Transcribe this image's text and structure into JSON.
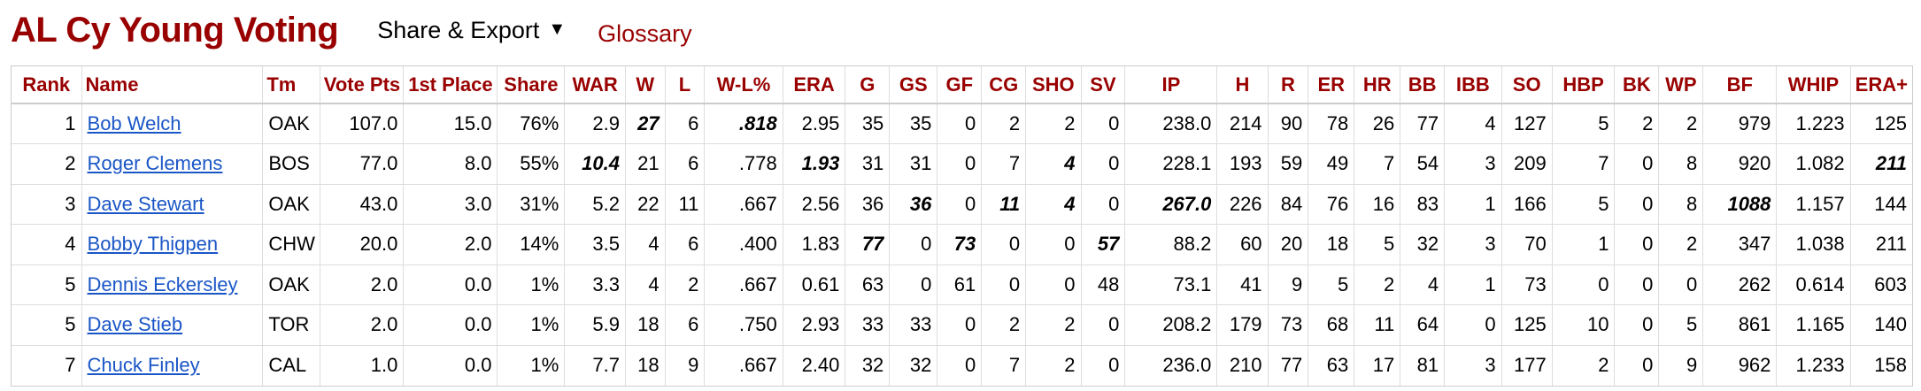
{
  "header": {
    "title": "AL Cy Young Voting",
    "share_export_label": "Share & Export",
    "caret_glyph": "▼",
    "glossary_label": "Glossary"
  },
  "colors": {
    "title": "#990000",
    "column_header": "#990000",
    "link": "#1a56c7"
  },
  "table": {
    "columns": [
      "Rank",
      "Name",
      "Tm",
      "Vote Pts",
      "1st Place",
      "Share",
      "WAR",
      "W",
      "L",
      "W-L%",
      "ERA",
      "G",
      "GS",
      "GF",
      "CG",
      "SHO",
      "SV",
      "IP",
      "H",
      "R",
      "ER",
      "HR",
      "BB",
      "IBB",
      "SO",
      "HBP",
      "BK",
      "WP",
      "BF",
      "WHIP",
      "ERA+"
    ],
    "rows": [
      {
        "cells": [
          "1",
          "Bob Welch",
          "OAK",
          "107.0",
          "15.0",
          "76%",
          "2.9",
          "27",
          "6",
          ".818",
          "2.95",
          "35",
          "35",
          "0",
          "2",
          "2",
          "0",
          "238.0",
          "214",
          "90",
          "78",
          "26",
          "77",
          "4",
          "127",
          "5",
          "2",
          "2",
          "979",
          "1.223",
          "125"
        ],
        "leaders": [
          7,
          9
        ]
      },
      {
        "cells": [
          "2",
          "Roger Clemens",
          "BOS",
          "77.0",
          "8.0",
          "55%",
          "10.4",
          "21",
          "6",
          ".778",
          "1.93",
          "31",
          "31",
          "0",
          "7",
          "4",
          "0",
          "228.1",
          "193",
          "59",
          "49",
          "7",
          "54",
          "3",
          "209",
          "7",
          "0",
          "8",
          "920",
          "1.082",
          "211"
        ],
        "leaders": [
          6,
          10,
          15,
          30
        ]
      },
      {
        "cells": [
          "3",
          "Dave Stewart",
          "OAK",
          "43.0",
          "3.0",
          "31%",
          "5.2",
          "22",
          "11",
          ".667",
          "2.56",
          "36",
          "36",
          "0",
          "11",
          "4",
          "0",
          "267.0",
          "226",
          "84",
          "76",
          "16",
          "83",
          "1",
          "166",
          "5",
          "0",
          "8",
          "1088",
          "1.157",
          "144"
        ],
        "leaders": [
          12,
          14,
          15,
          17,
          28
        ]
      },
      {
        "cells": [
          "4",
          "Bobby Thigpen",
          "CHW",
          "20.0",
          "2.0",
          "14%",
          "3.5",
          "4",
          "6",
          ".400",
          "1.83",
          "77",
          "0",
          "73",
          "0",
          "0",
          "57",
          "88.2",
          "60",
          "20",
          "18",
          "5",
          "32",
          "3",
          "70",
          "1",
          "0",
          "2",
          "347",
          "1.038",
          "211"
        ],
        "leaders": [
          11,
          13,
          16
        ]
      },
      {
        "cells": [
          "5",
          "Dennis Eckersley",
          "OAK",
          "2.0",
          "0.0",
          "1%",
          "3.3",
          "4",
          "2",
          ".667",
          "0.61",
          "63",
          "0",
          "61",
          "0",
          "0",
          "48",
          "73.1",
          "41",
          "9",
          "5",
          "2",
          "4",
          "1",
          "73",
          "0",
          "0",
          "0",
          "262",
          "0.614",
          "603"
        ],
        "leaders": []
      },
      {
        "cells": [
          "5",
          "Dave Stieb",
          "TOR",
          "2.0",
          "0.0",
          "1%",
          "5.9",
          "18",
          "6",
          ".750",
          "2.93",
          "33",
          "33",
          "0",
          "2",
          "2",
          "0",
          "208.2",
          "179",
          "73",
          "68",
          "11",
          "64",
          "0",
          "125",
          "10",
          "0",
          "5",
          "861",
          "1.165",
          "140"
        ],
        "leaders": []
      },
      {
        "cells": [
          "7",
          "Chuck Finley",
          "CAL",
          "1.0",
          "0.0",
          "1%",
          "7.7",
          "18",
          "9",
          ".667",
          "2.40",
          "32",
          "32",
          "0",
          "7",
          "2",
          "0",
          "236.0",
          "210",
          "77",
          "63",
          "17",
          "81",
          "3",
          "177",
          "2",
          "0",
          "9",
          "962",
          "1.233",
          "158"
        ],
        "leaders": []
      }
    ]
  }
}
